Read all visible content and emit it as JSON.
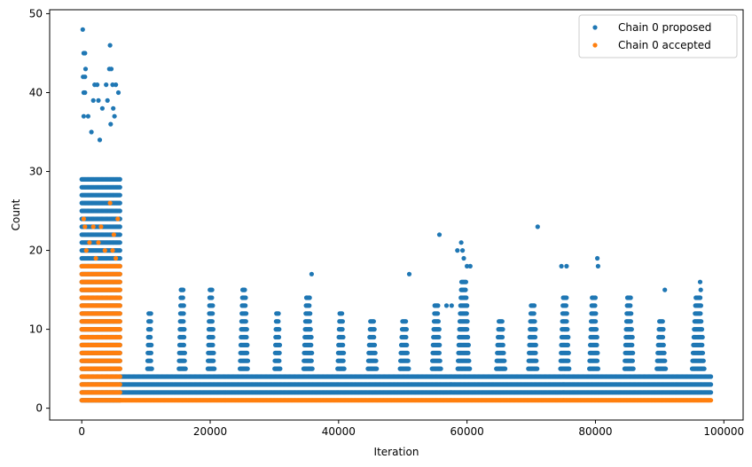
{
  "chart_data": {
    "type": "scatter",
    "title": "",
    "xlabel": "Iteration",
    "ylabel": "Count",
    "xlim": [
      -5000,
      103000
    ],
    "ylim": [
      -1.5,
      50.5
    ],
    "x_ticks": [
      0,
      20000,
      40000,
      60000,
      80000,
      100000
    ],
    "x_tick_labels": [
      "0",
      "20000",
      "40000",
      "60000",
      "80000",
      "100000"
    ],
    "y_ticks": [
      0,
      10,
      20,
      30,
      40,
      50
    ],
    "y_tick_labels": [
      "0",
      "10",
      "20",
      "30",
      "40",
      "50"
    ],
    "grid": false,
    "legend_position": "top-right",
    "series": [
      {
        "name": "Chain 0 proposed",
        "color": "#1f77b4",
        "bands": [
          {
            "x": [
              0,
              6000
            ],
            "y": [
              1,
              29
            ]
          },
          {
            "x": [
              6000,
              98000
            ],
            "y": [
              2,
              4
            ]
          }
        ],
        "spikes": [
          {
            "x": [
              10200,
              11000
            ],
            "ymax": 12
          },
          {
            "x": [
              15100,
              16200
            ],
            "ymax": 15
          },
          {
            "x": [
              19600,
              20700
            ],
            "ymax": 15
          },
          {
            "x": [
              24600,
              26000
            ],
            "ymax": 15
          },
          {
            "x": [
              30000,
              31000
            ],
            "ymax": 12
          },
          {
            "x": [
              34500,
              36000
            ],
            "ymax": 14
          },
          {
            "x": [
              39800,
              41000
            ],
            "ymax": 12
          },
          {
            "x": [
              44500,
              46000
            ],
            "ymax": 11
          },
          {
            "x": [
              49500,
              51000
            ],
            "ymax": 11
          },
          {
            "x": [
              54500,
              56000
            ],
            "ymax": 13
          },
          {
            "x": [
              58500,
              60500
            ],
            "ymax": 16
          },
          {
            "x": [
              64500,
              66000
            ],
            "ymax": 11
          },
          {
            "x": [
              69500,
              71000
            ],
            "ymax": 13
          },
          {
            "x": [
              74500,
              76000
            ],
            "ymax": 14
          },
          {
            "x": [
              79000,
              80500
            ],
            "ymax": 14
          },
          {
            "x": [
              84500,
              86000
            ],
            "ymax": 14
          },
          {
            "x": [
              89500,
              91000
            ],
            "ymax": 11
          },
          {
            "x": [
              95000,
              97000
            ],
            "ymax": 14
          }
        ],
        "points": [
          {
            "x": 150,
            "y": 48
          },
          {
            "x": 300,
            "y": 45
          },
          {
            "x": 500,
            "y": 45
          },
          {
            "x": 200,
            "y": 42
          },
          {
            "x": 500,
            "y": 42
          },
          {
            "x": 600,
            "y": 43
          },
          {
            "x": 300,
            "y": 40
          },
          {
            "x": 500,
            "y": 40
          },
          {
            "x": 2000,
            "y": 41
          },
          {
            "x": 2400,
            "y": 41
          },
          {
            "x": 4400,
            "y": 46
          },
          {
            "x": 4300,
            "y": 43
          },
          {
            "x": 4600,
            "y": 43
          },
          {
            "x": 3800,
            "y": 41
          },
          {
            "x": 4800,
            "y": 41
          },
          {
            "x": 5300,
            "y": 41
          },
          {
            "x": 1000,
            "y": 37
          },
          {
            "x": 300,
            "y": 37
          },
          {
            "x": 1800,
            "y": 39
          },
          {
            "x": 2600,
            "y": 39
          },
          {
            "x": 4000,
            "y": 39
          },
          {
            "x": 5700,
            "y": 40
          },
          {
            "x": 3200,
            "y": 38
          },
          {
            "x": 4900,
            "y": 38
          },
          {
            "x": 1500,
            "y": 35
          },
          {
            "x": 5100,
            "y": 37
          },
          {
            "x": 4500,
            "y": 36
          },
          {
            "x": 2800,
            "y": 34
          },
          {
            "x": 35800,
            "y": 17
          },
          {
            "x": 51000,
            "y": 17
          },
          {
            "x": 55700,
            "y": 22
          },
          {
            "x": 58500,
            "y": 20
          },
          {
            "x": 59100,
            "y": 21
          },
          {
            "x": 59300,
            "y": 20
          },
          {
            "x": 59500,
            "y": 19
          },
          {
            "x": 60000,
            "y": 18
          },
          {
            "x": 60500,
            "y": 18
          },
          {
            "x": 71000,
            "y": 23
          },
          {
            "x": 74700,
            "y": 18
          },
          {
            "x": 75500,
            "y": 18
          },
          {
            "x": 80300,
            "y": 19
          },
          {
            "x": 80400,
            "y": 18
          },
          {
            "x": 96300,
            "y": 16
          },
          {
            "x": 90800,
            "y": 15
          },
          {
            "x": 96400,
            "y": 15
          },
          {
            "x": 57600,
            "y": 13
          },
          {
            "x": 56800,
            "y": 13
          }
        ]
      },
      {
        "name": "Chain 0 accepted",
        "color": "#ff7f0e",
        "bands": [
          {
            "x": [
              0,
              6000
            ],
            "y": [
              1,
              18
            ]
          },
          {
            "x": [
              6000,
              98000
            ],
            "y": [
              1,
              1
            ]
          }
        ],
        "points": [
          {
            "x": 300,
            "y": 24
          },
          {
            "x": 500,
            "y": 23
          },
          {
            "x": 1800,
            "y": 23
          },
          {
            "x": 2600,
            "y": 21
          },
          {
            "x": 3000,
            "y": 23
          },
          {
            "x": 4400,
            "y": 26
          },
          {
            "x": 5000,
            "y": 22
          },
          {
            "x": 5600,
            "y": 24
          },
          {
            "x": 1200,
            "y": 21
          },
          {
            "x": 3600,
            "y": 20
          },
          {
            "x": 4800,
            "y": 20
          },
          {
            "x": 700,
            "y": 20
          },
          {
            "x": 2200,
            "y": 19
          },
          {
            "x": 5300,
            "y": 19
          }
        ]
      }
    ]
  }
}
